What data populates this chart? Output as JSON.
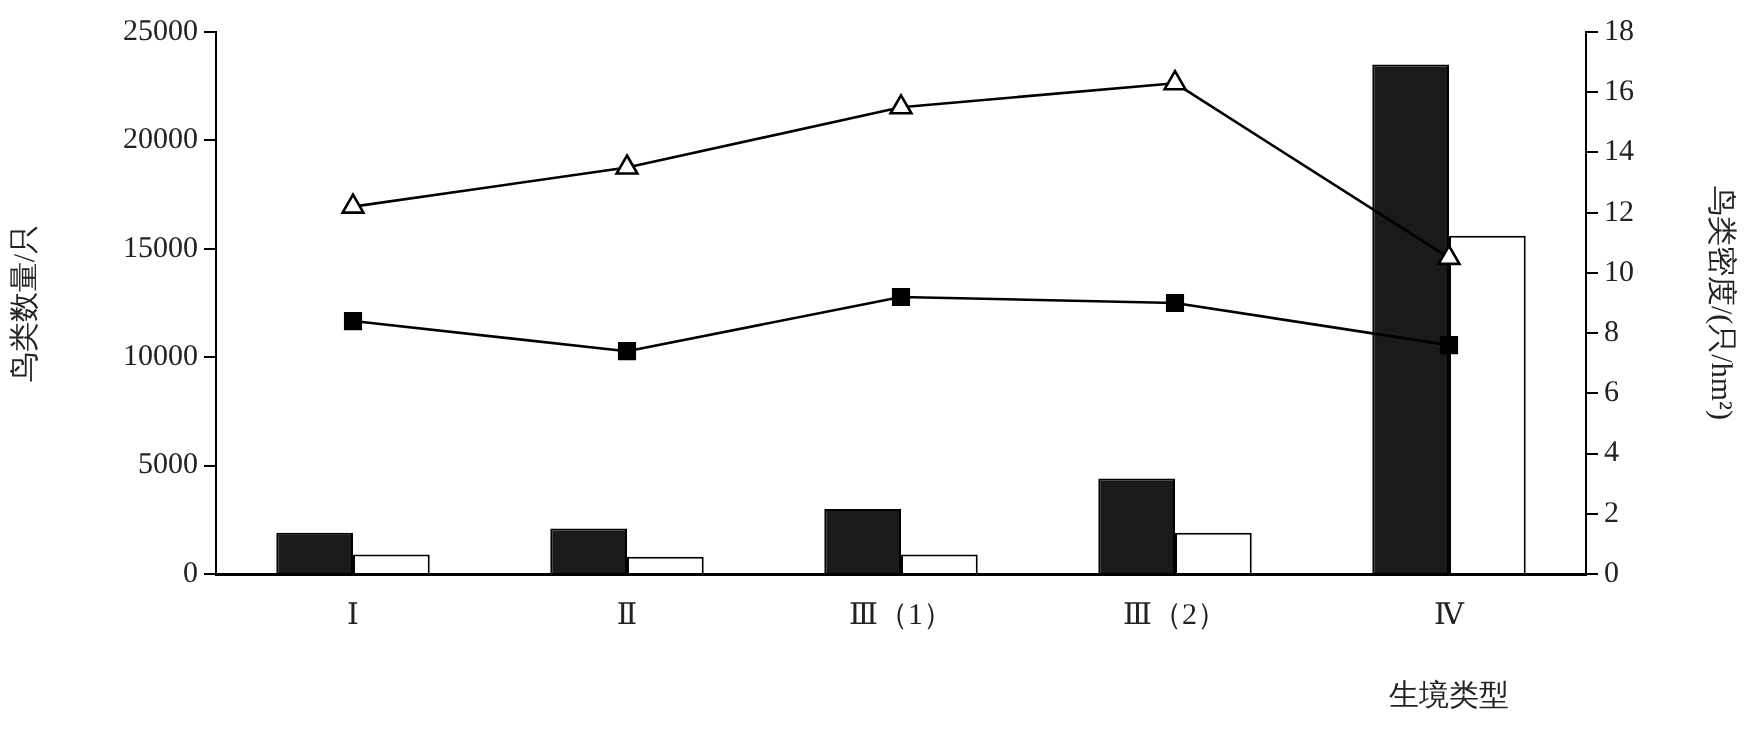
{
  "chart_data": {
    "type": "bar",
    "xlabel": "生境类型",
    "ylabel": "鸟类数量/只",
    "y2label": "鸟类密度/(只/hm²)",
    "categories": [
      "Ⅰ",
      "Ⅱ",
      "Ⅲ（1）",
      "Ⅲ（2）",
      "Ⅳ"
    ],
    "series": [
      {
        "color": "#1a1a1a",
        "values": [
          1900,
          2100,
          3000,
          4400,
          23500
        ]
      },
      {
        "color": "#ffffff",
        "values": [
          900,
          800,
          900,
          1900,
          15600
        ]
      },
      {
        "type": "line",
        "axis": "y2",
        "color": "#000000",
        "marker": "triangle",
        "values": [
          12.2,
          13.5,
          15.5,
          16.3,
          10.5
        ]
      },
      {
        "type": "line",
        "axis": "y2",
        "color": "#000000",
        "marker": "square",
        "values": [
          8.4,
          7.4,
          9.2,
          9.0,
          7.6
        ]
      }
    ],
    "ylim": [
      0,
      25000
    ],
    "yticks": [
      0,
      5000,
      10000,
      15000,
      20000,
      25000
    ],
    "y2lim": [
      0,
      18
    ],
    "y2ticks": [
      0,
      2,
      4,
      6,
      8,
      10,
      12,
      14,
      16,
      18
    ],
    "grid": false,
    "legend": false
  }
}
